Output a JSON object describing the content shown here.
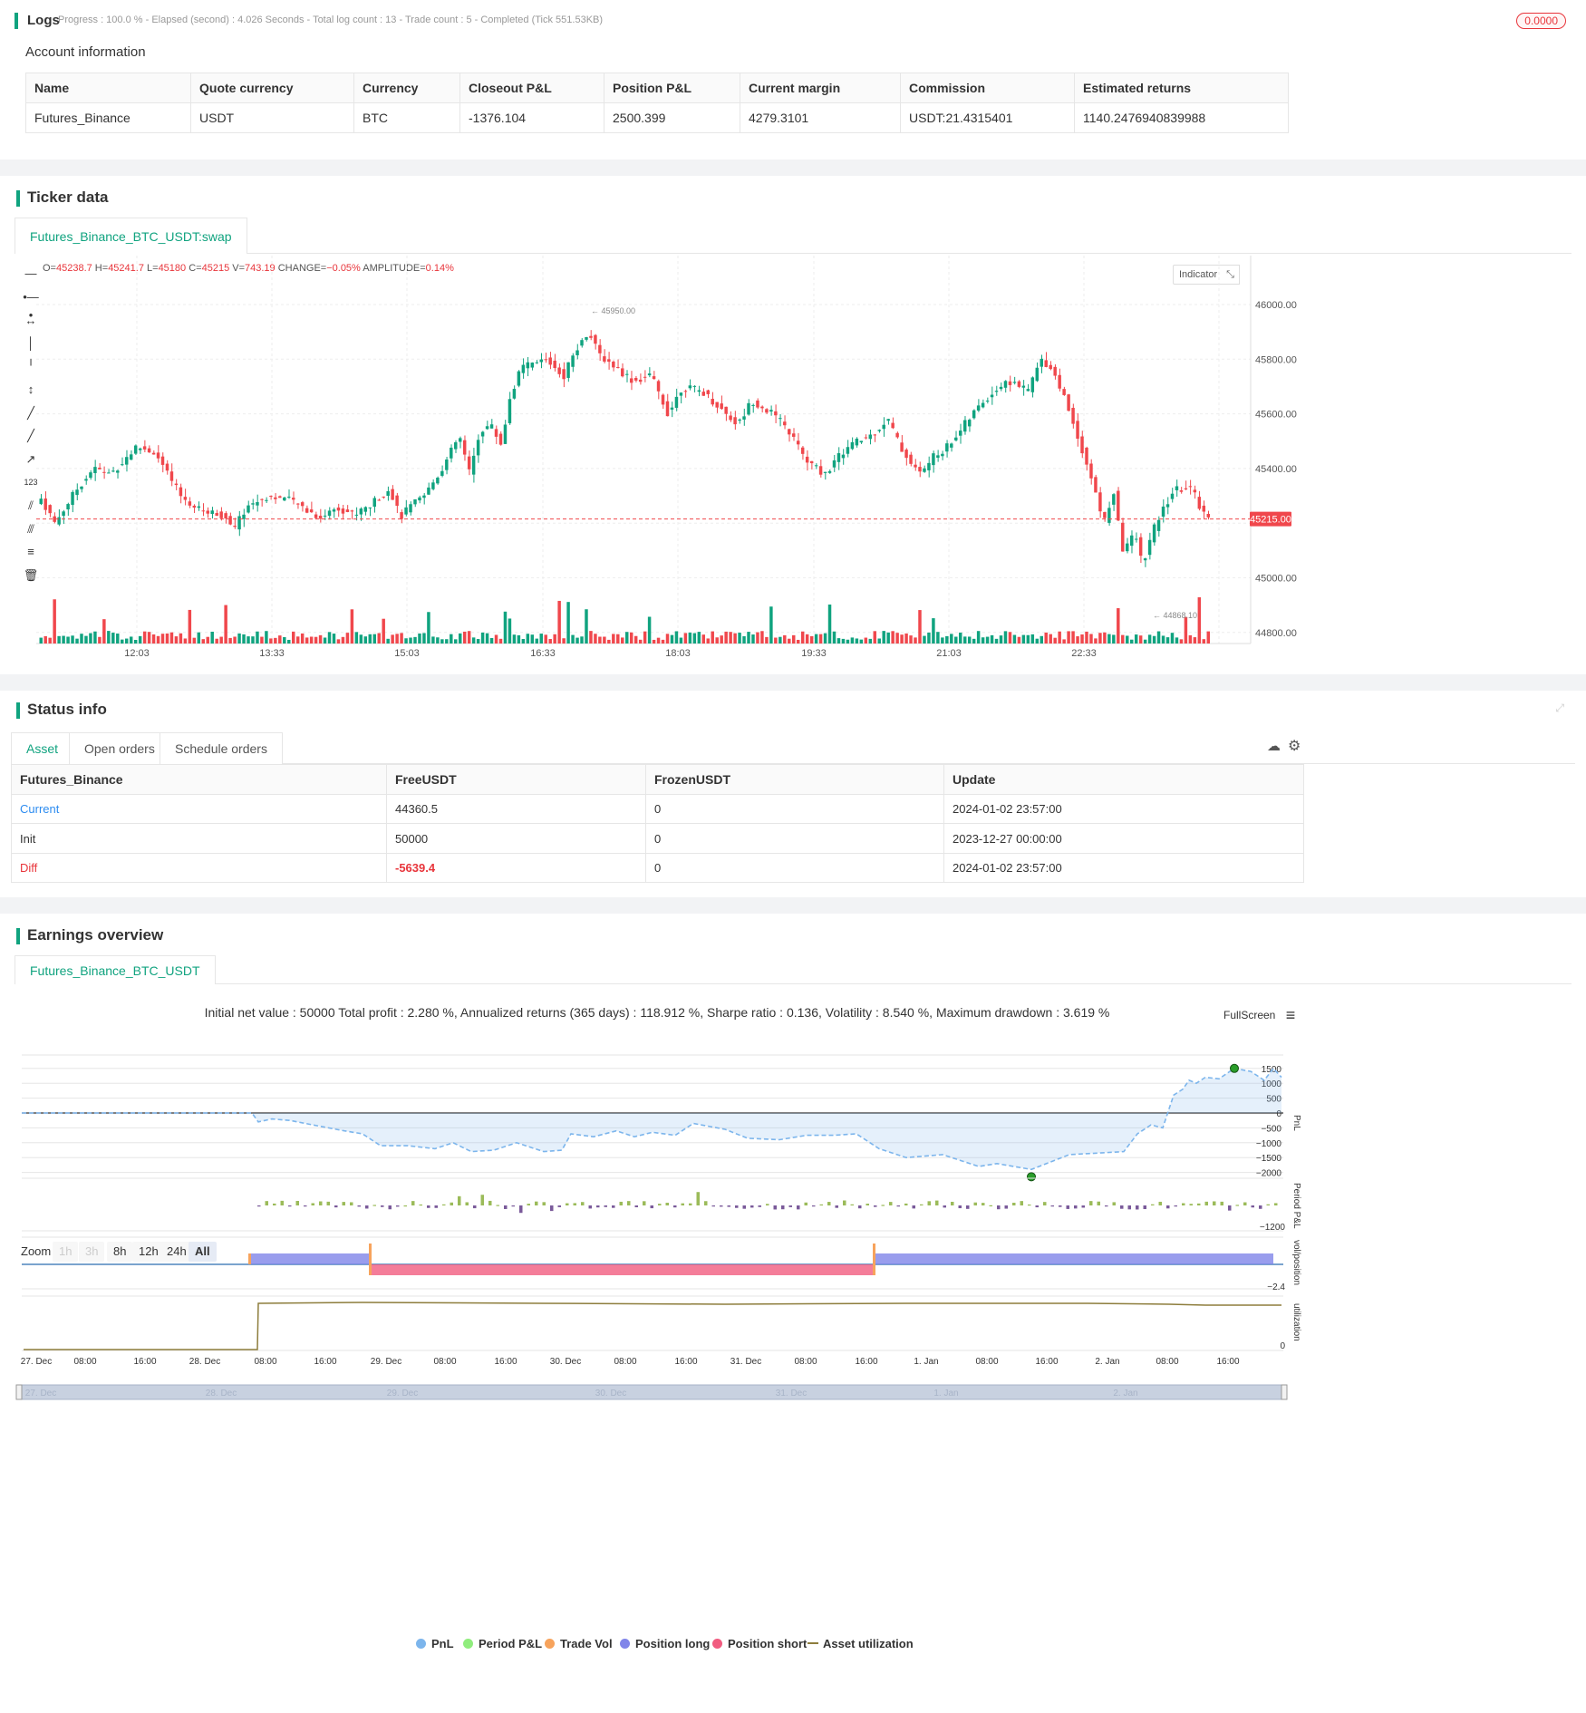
{
  "logs": {
    "title": "Logs",
    "status": "Progress : 100.0 % - Elapsed (second) : 4.026  Seconds - Total log count : 13 - Trade count : 5 - Completed (Tick 551.53KB)",
    "badge": "0.0000"
  },
  "account": {
    "title": "Account information",
    "headers": [
      "Name",
      "Quote currency",
      "Currency",
      "Closeout P&L",
      "Position P&L",
      "Current margin",
      "Commission",
      "Estimated returns"
    ],
    "row": [
      "Futures_Binance",
      "USDT",
      "BTC",
      "-1376.104",
      "2500.399",
      "4279.3101",
      "USDT:21.4315401",
      "1140.2476940839988"
    ]
  },
  "ticker": {
    "title": "Ticker data",
    "tab": "Futures_Binance_BTC_USDT:swap",
    "ohlc": {
      "o_label": "O=",
      "o": "45238.7",
      "h_label": " H=",
      "h": "45241.7",
      "l_label": " L=",
      "l": "45180",
      "c_label": " C=",
      "c": "45215",
      "v_label": " V=",
      "v": "743.19",
      "change_label": " CHANGE=",
      "change": "−0.05%",
      "amp_label": " AMPLITUDE=",
      "amp": "0.14%"
    },
    "indicator_button": "Indicator",
    "price_labels": [
      "46000.00",
      "45800.00",
      "45600.00",
      "45400.00",
      "45000.00",
      "44800.00"
    ],
    "current_price": "45215.00",
    "high_marker": "45950.00",
    "low_marker": "44868.10",
    "time_labels": [
      "12:03",
      "13:33",
      "15:03",
      "16:33",
      "18:03",
      "19:33",
      "21:03",
      "22:33"
    ],
    "colors": {
      "up": "#10a37f",
      "down": "#f0474c"
    }
  },
  "status": {
    "title": "Status info",
    "tabs": [
      "Asset",
      "Open orders",
      "Schedule orders"
    ],
    "headers": [
      "Futures_Binance",
      "FreeUSDT",
      "FrozenUSDT",
      "Update"
    ],
    "rows": [
      [
        "Current",
        "44360.5",
        "0",
        "2024-01-02 23:57:00"
      ],
      [
        "Init",
        "50000",
        "0",
        "2023-12-27 00:00:00"
      ],
      [
        "Diff",
        "-5639.4",
        "0",
        "2024-01-02 23:57:00"
      ]
    ]
  },
  "earnings": {
    "title": "Earnings overview",
    "tab": "Futures_Binance_BTC_USDT",
    "summary": "Initial net value : 50000 Total profit : 2.280 %, Annualized returns (365 days) : 118.912 %, Sharpe ratio : 0.136, Volatility : 8.540 %, Maximum drawdown : 3.619 %",
    "fullscreen": "FullScreen",
    "zoom_label": "Zoom",
    "zoom_options": [
      "1h",
      "3h",
      "8h",
      "12h",
      "24h",
      "All"
    ],
    "pnl_axis": [
      "1500",
      "1000",
      "500",
      "0",
      "−500",
      "−1000",
      "−1500",
      "−2000"
    ],
    "period_axis": [
      "−1200"
    ],
    "vol_axis": [
      "−2.4"
    ],
    "util_axis": [
      "0"
    ],
    "axis_titles": [
      "PnL",
      "Period P&L",
      "vol/position",
      "utilization"
    ],
    "time_labels": [
      "27. Dec",
      "08:00",
      "16:00",
      "28. Dec",
      "08:00",
      "16:00",
      "29. Dec",
      "08:00",
      "16:00",
      "30. Dec",
      "08:00",
      "16:00",
      "31. Dec",
      "08:00",
      "16:00",
      "1. Jan",
      "08:00",
      "16:00",
      "2. Jan",
      "08:00",
      "16:00"
    ],
    "navigator_labels": [
      "27. Dec",
      "28. Dec",
      "29. Dec",
      "30. Dec",
      "31. Dec",
      "1. Jan",
      "2. Jan"
    ],
    "legend": [
      {
        "label": "PnL",
        "color": "#7cb5ec"
      },
      {
        "label": "Period P&L",
        "color": "#90ed7d"
      },
      {
        "label": "Trade Vol",
        "color": "#f7a35c"
      },
      {
        "label": "Position long",
        "color": "#8085e9"
      },
      {
        "label": "Position short",
        "color": "#f15c80"
      },
      {
        "label": "Asset utilization",
        "color": "#8d7d3c"
      }
    ]
  }
}
